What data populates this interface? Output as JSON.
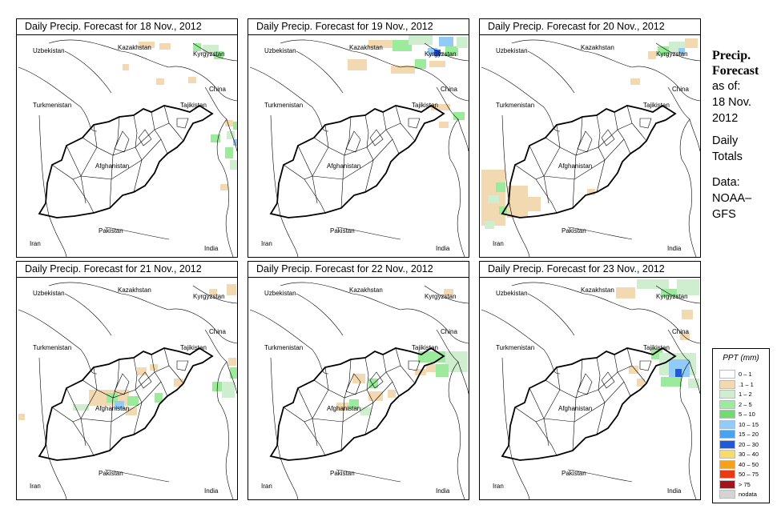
{
  "panels": [
    {
      "title": "Daily Precip. Forecast for  18 Nov., 2012",
      "cells": [
        {
          "c": "#f3d9b1",
          "x": 152,
          "y": 28,
          "w": 20,
          "h": 8
        },
        {
          "c": "#f3d9b1",
          "x": 178,
          "y": 30,
          "w": 14,
          "h": 8
        },
        {
          "c": "#9ceb9c",
          "x": 220,
          "y": 30,
          "w": 10,
          "h": 10
        },
        {
          "c": "#cfeecf",
          "x": 232,
          "y": 32,
          "w": 20,
          "h": 10
        },
        {
          "c": "#9ceb9c",
          "x": 246,
          "y": 40,
          "w": 12,
          "h": 10
        },
        {
          "c": "#f3d9b1",
          "x": 132,
          "y": 56,
          "w": 8,
          "h": 8
        },
        {
          "c": "#f3d9b1",
          "x": 174,
          "y": 74,
          "w": 10,
          "h": 8
        },
        {
          "c": "#f3d9b1",
          "x": 214,
          "y": 72,
          "w": 10,
          "h": 8
        },
        {
          "c": "#f3d9b1",
          "x": 260,
          "y": 126,
          "w": 10,
          "h": 8
        },
        {
          "c": "#9ceb9c",
          "x": 270,
          "y": 128,
          "w": 10,
          "h": 10
        },
        {
          "c": "#cfeecf",
          "x": 262,
          "y": 140,
          "w": 10,
          "h": 10
        },
        {
          "c": "#92cbf7",
          "x": 270,
          "y": 150,
          "w": 8,
          "h": 8
        },
        {
          "c": "#9ceb9c",
          "x": 242,
          "y": 144,
          "w": 12,
          "h": 10
        },
        {
          "c": "#9ceb9c",
          "x": 260,
          "y": 160,
          "w": 10,
          "h": 14
        },
        {
          "c": "#cfeecf",
          "x": 266,
          "y": 176,
          "w": 10,
          "h": 12
        },
        {
          "c": "#f3d9b1",
          "x": 254,
          "y": 206,
          "w": 10,
          "h": 8
        }
      ]
    },
    {
      "title": "Daily Precip. Forecast for  19 Nov., 2012",
      "cells": [
        {
          "c": "#f3d9b1",
          "x": 150,
          "y": 26,
          "w": 30,
          "h": 10
        },
        {
          "c": "#9ceb9c",
          "x": 180,
          "y": 26,
          "w": 24,
          "h": 14
        },
        {
          "c": "#cfeecf",
          "x": 200,
          "y": 20,
          "w": 30,
          "h": 12
        },
        {
          "c": "#92cbf7",
          "x": 238,
          "y": 22,
          "w": 18,
          "h": 12
        },
        {
          "c": "#92cbf7",
          "x": 224,
          "y": 36,
          "w": 12,
          "h": 10
        },
        {
          "c": "#1f58d8",
          "x": 232,
          "y": 38,
          "w": 8,
          "h": 8
        },
        {
          "c": "#9ceb9c",
          "x": 246,
          "y": 34,
          "w": 16,
          "h": 12
        },
        {
          "c": "#cfeecf",
          "x": 260,
          "y": 22,
          "w": 14,
          "h": 14
        },
        {
          "c": "#f3d9b1",
          "x": 124,
          "y": 50,
          "w": 24,
          "h": 14
        },
        {
          "c": "#f3d9b1",
          "x": 178,
          "y": 58,
          "w": 30,
          "h": 10
        },
        {
          "c": "#9ceb9c",
          "x": 208,
          "y": 50,
          "w": 14,
          "h": 12
        },
        {
          "c": "#f3d9b1",
          "x": 226,
          "y": 52,
          "w": 20,
          "h": 8
        },
        {
          "c": "#f3d9b1",
          "x": 228,
          "y": 106,
          "w": 24,
          "h": 8
        },
        {
          "c": "#9ceb9c",
          "x": 256,
          "y": 116,
          "w": 14,
          "h": 10
        },
        {
          "c": "#f3d9b1",
          "x": 238,
          "y": 128,
          "w": 12,
          "h": 8
        }
      ]
    },
    {
      "title": "Daily Precip. Forecast for  20 Nov., 2012",
      "cells": [
        {
          "c": "#f3d9b1",
          "x": 210,
          "y": 40,
          "w": 10,
          "h": 10
        },
        {
          "c": "#9ceb9c",
          "x": 222,
          "y": 34,
          "w": 14,
          "h": 12
        },
        {
          "c": "#cfeecf",
          "x": 236,
          "y": 28,
          "w": 20,
          "h": 14
        },
        {
          "c": "#92cbf7",
          "x": 248,
          "y": 36,
          "w": 8,
          "h": 8
        },
        {
          "c": "#f3d9b1",
          "x": 256,
          "y": 24,
          "w": 16,
          "h": 12
        },
        {
          "c": "#f3d9b1",
          "x": 188,
          "y": 74,
          "w": 12,
          "h": 8
        },
        {
          "c": "#f3d9b1",
          "x": 2,
          "y": 188,
          "w": 30,
          "h": 70
        },
        {
          "c": "#9ceb9c",
          "x": 20,
          "y": 204,
          "w": 12,
          "h": 12
        },
        {
          "c": "#cfeecf",
          "x": 10,
          "y": 220,
          "w": 14,
          "h": 10
        },
        {
          "c": "#9ceb9c",
          "x": 24,
          "y": 234,
          "w": 10,
          "h": 10
        },
        {
          "c": "#f3d9b1",
          "x": 34,
          "y": 208,
          "w": 26,
          "h": 40
        },
        {
          "c": "#f3d9b1",
          "x": 60,
          "y": 222,
          "w": 16,
          "h": 18
        },
        {
          "c": "#cfeecf",
          "x": 6,
          "y": 252,
          "w": 12,
          "h": 10
        },
        {
          "c": "#f3d9b1",
          "x": 134,
          "y": 212,
          "w": 10,
          "h": 8
        }
      ]
    },
    {
      "title": "Daily Precip. Forecast for  21 Nov., 2012",
      "cells": [
        {
          "c": "#f3d9b1",
          "x": 262,
          "y": 28,
          "w": 12,
          "h": 14
        },
        {
          "c": "#f3d9b1",
          "x": 240,
          "y": 34,
          "w": 10,
          "h": 8
        },
        {
          "c": "#f3d9b1",
          "x": 150,
          "y": 132,
          "w": 12,
          "h": 10
        },
        {
          "c": "#f3d9b1",
          "x": 166,
          "y": 128,
          "w": 10,
          "h": 8
        },
        {
          "c": "#f3d9b1",
          "x": 90,
          "y": 160,
          "w": 50,
          "h": 20
        },
        {
          "c": "#9ceb9c",
          "x": 112,
          "y": 164,
          "w": 14,
          "h": 12
        },
        {
          "c": "#92cbf7",
          "x": 122,
          "y": 174,
          "w": 12,
          "h": 10
        },
        {
          "c": "#9ceb9c",
          "x": 138,
          "y": 168,
          "w": 14,
          "h": 12
        },
        {
          "c": "#f3d9b1",
          "x": 136,
          "y": 182,
          "w": 14,
          "h": 10
        },
        {
          "c": "#9ceb9c",
          "x": 172,
          "y": 164,
          "w": 10,
          "h": 12
        },
        {
          "c": "#cfeecf",
          "x": 70,
          "y": 178,
          "w": 20,
          "h": 8
        },
        {
          "c": "#f3d9b1",
          "x": 2,
          "y": 190,
          "w": 8,
          "h": 8
        },
        {
          "c": "#f3d9b1",
          "x": 196,
          "y": 146,
          "w": 12,
          "h": 10
        },
        {
          "c": "#f3d9b1",
          "x": 264,
          "y": 120,
          "w": 10,
          "h": 10
        },
        {
          "c": "#9ceb9c",
          "x": 266,
          "y": 132,
          "w": 10,
          "h": 14
        },
        {
          "c": "#cfeecf",
          "x": 256,
          "y": 150,
          "w": 16,
          "h": 20
        },
        {
          "c": "#9ceb9c",
          "x": 244,
          "y": 150,
          "w": 12,
          "h": 12
        }
      ]
    },
    {
      "title": "Daily Precip. Forecast for  22 Nov., 2012",
      "cells": [
        {
          "c": "#f3d9b1",
          "x": 244,
          "y": 34,
          "w": 12,
          "h": 8
        },
        {
          "c": "#9ceb9c",
          "x": 212,
          "y": 112,
          "w": 40,
          "h": 14
        },
        {
          "c": "#cfeecf",
          "x": 246,
          "y": 112,
          "w": 28,
          "h": 26
        },
        {
          "c": "#9ceb9c",
          "x": 234,
          "y": 128,
          "w": 16,
          "h": 16
        },
        {
          "c": "#f3d9b1",
          "x": 222,
          "y": 128,
          "w": 12,
          "h": 10
        },
        {
          "c": "#f3d9b1",
          "x": 208,
          "y": 134,
          "w": 14,
          "h": 8
        },
        {
          "c": "#f3d9b1",
          "x": 130,
          "y": 140,
          "w": 16,
          "h": 12
        },
        {
          "c": "#9ceb9c",
          "x": 150,
          "y": 146,
          "w": 12,
          "h": 12
        },
        {
          "c": "#f3d9b1",
          "x": 150,
          "y": 162,
          "w": 18,
          "h": 12
        },
        {
          "c": "#9ceb9c",
          "x": 126,
          "y": 172,
          "w": 12,
          "h": 12
        },
        {
          "c": "#f3d9b1",
          "x": 110,
          "y": 176,
          "w": 16,
          "h": 10
        },
        {
          "c": "#cfeecf",
          "x": 140,
          "y": 182,
          "w": 14,
          "h": 10
        },
        {
          "c": "#f3d9b1",
          "x": 174,
          "y": 160,
          "w": 10,
          "h": 10
        }
      ]
    },
    {
      "title": "Daily Precip. Forecast for  23 Nov., 2012",
      "cells": [
        {
          "c": "#f3d9b1",
          "x": 170,
          "y": 32,
          "w": 24,
          "h": 14
        },
        {
          "c": "#cfeecf",
          "x": 196,
          "y": 22,
          "w": 40,
          "h": 12
        },
        {
          "c": "#9ceb9c",
          "x": 226,
          "y": 34,
          "w": 22,
          "h": 10
        },
        {
          "c": "#cfeecf",
          "x": 246,
          "y": 22,
          "w": 28,
          "h": 20
        },
        {
          "c": "#f3d9b1",
          "x": 252,
          "y": 60,
          "w": 14,
          "h": 12
        },
        {
          "c": "#9ceb9c",
          "x": 214,
          "y": 108,
          "w": 14,
          "h": 14
        },
        {
          "c": "#cfeecf",
          "x": 224,
          "y": 114,
          "w": 46,
          "h": 28
        },
        {
          "c": "#92cbf7",
          "x": 236,
          "y": 122,
          "w": 26,
          "h": 22
        },
        {
          "c": "#1f58d8",
          "x": 244,
          "y": 134,
          "w": 8,
          "h": 10
        },
        {
          "c": "#9ceb9c",
          "x": 226,
          "y": 144,
          "w": 26,
          "h": 12
        },
        {
          "c": "#cfeecf",
          "x": 260,
          "y": 146,
          "w": 14,
          "h": 12
        },
        {
          "c": "#f3d9b1",
          "x": 186,
          "y": 130,
          "w": 12,
          "h": 10
        },
        {
          "c": "#f3d9b1",
          "x": 196,
          "y": 146,
          "w": 10,
          "h": 10
        },
        {
          "c": "#f3d9b1",
          "x": 250,
          "y": 88,
          "w": 12,
          "h": 10
        }
      ]
    }
  ],
  "countries": [
    "Uzbekistan",
    "Kazakhstan",
    "Kyrgyzstan",
    "China",
    "Turkmenistan",
    "Tajikistan",
    "Afghanistan",
    "Iran",
    "Pakistan",
    "India"
  ],
  "side": {
    "title1": "Precip.",
    "title2": "Forecast",
    "asof": "as of:",
    "date1": "18 Nov.",
    "date2": "2012",
    "daily1": "Daily",
    "daily2": "Totals",
    "data1": "Data:",
    "data2": "NOAA–",
    "data3": "GFS"
  },
  "legend": {
    "title": "PPT (mm)",
    "items": [
      {
        "label": "0 – 1",
        "color": "#ffffff"
      },
      {
        "label": ".1 – 1",
        "color": "#f3d9b1"
      },
      {
        "label": "1 – 2",
        "color": "#cfeecf"
      },
      {
        "label": "2 – 5",
        "color": "#9ceb9c"
      },
      {
        "label": "5 – 10",
        "color": "#6fdc6f"
      },
      {
        "label": "10 – 15",
        "color": "#92cbf7"
      },
      {
        "label": "15 – 20",
        "color": "#4aa3ef"
      },
      {
        "label": "20 – 30",
        "color": "#1f58d8"
      },
      {
        "label": "30 – 40",
        "color": "#f7dc6a"
      },
      {
        "label": "40 – 50",
        "color": "#f4a21d"
      },
      {
        "label": "50 – 75",
        "color": "#e83a15"
      },
      {
        "label": "> 75",
        "color": "#a5121b"
      },
      {
        "label": "nodata",
        "color": "#d4d4d4"
      }
    ]
  }
}
